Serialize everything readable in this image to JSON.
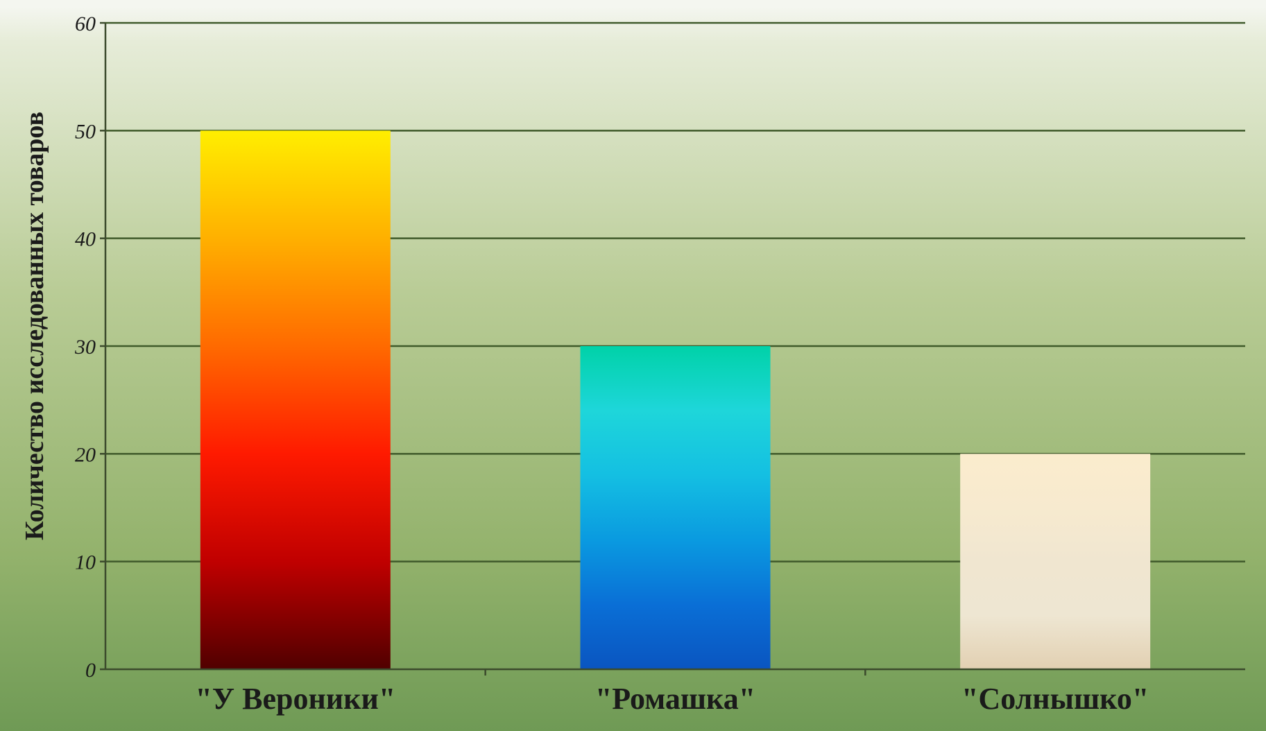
{
  "chart_data": {
    "type": "bar",
    "categories": [
      "\"У Вероники\"",
      "\"Ромашка\"",
      "\"Солнышко\""
    ],
    "values": [
      50,
      30,
      20
    ],
    "title": "",
    "xlabel": "",
    "ylabel": "Количество исследованных товаров",
    "ylim": [
      0,
      60
    ],
    "yticks": [
      "0",
      "10",
      "20",
      "30",
      "40",
      "50",
      "60"
    ],
    "grid": true,
    "legend": "none",
    "bar_gradients": [
      [
        "#ffee00",
        "#ffb000",
        "#ff6a00",
        "#ff1a00",
        "#c00000",
        "#500000"
      ],
      [
        "#00d2a8",
        "#1ed6da",
        "#14bfe2",
        "#0a9ae0",
        "#0a6fd6",
        "#0a55c0"
      ],
      [
        "#fbeccd",
        "#f7eacf",
        "#f0e6d0",
        "#eee6d2",
        "#e2d0b2"
      ]
    ],
    "colors": {
      "axis": "#3b4a2c",
      "grid": "#3f5a2a",
      "text": "#1a1a1a"
    }
  }
}
